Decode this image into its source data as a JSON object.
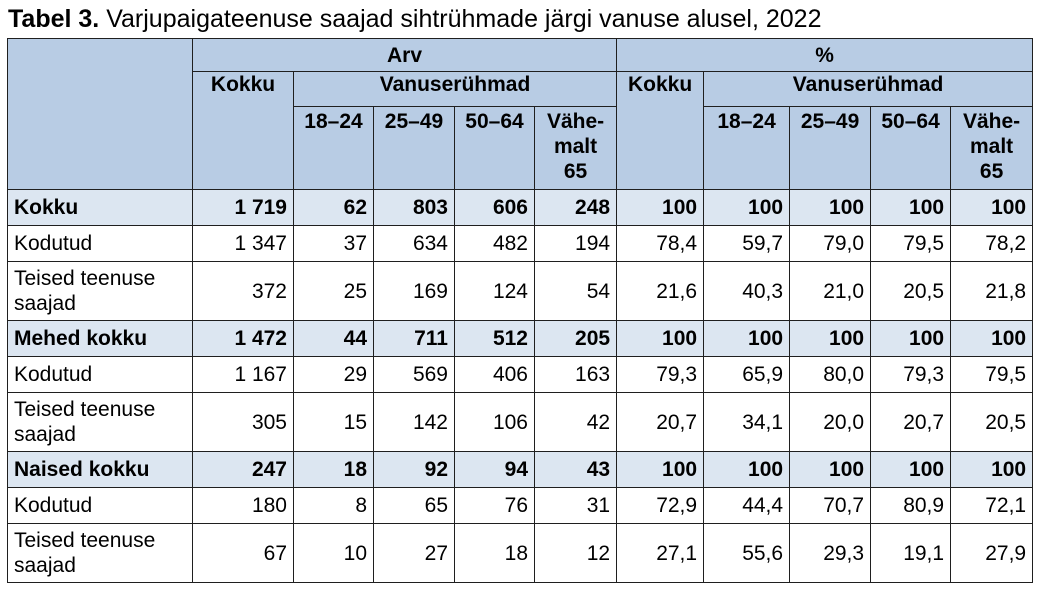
{
  "title": {
    "bold": "Tabel 3.",
    "text": " Varjupaigateenuse saajad sihtrühmade järgi vanuse alusel, 2022"
  },
  "header": {
    "group_count": "Arv",
    "group_pct": "%",
    "total": "Kokku",
    "age_groups": "Vanuserühmad",
    "ages": [
      "18–24",
      "25–49",
      "50–64",
      "Vähe-malt 65"
    ],
    "ages_display": [
      "18–24",
      "25–49",
      "50–64",
      "Vähe-\nmalt\n65"
    ]
  },
  "rows": [
    {
      "label": "Kokku",
      "total": true,
      "cells": [
        "1 719",
        "62",
        "803",
        "606",
        "248",
        "100",
        "100",
        "100",
        "100",
        "100"
      ]
    },
    {
      "label": "Kodutud",
      "total": false,
      "cells": [
        "1 347",
        "37",
        "634",
        "482",
        "194",
        "78,4",
        "59,7",
        "79,0",
        "79,5",
        "78,2"
      ]
    },
    {
      "label": "Teised teenuse saajad",
      "total": false,
      "tall": true,
      "cells": [
        "372",
        "25",
        "169",
        "124",
        "54",
        "21,6",
        "40,3",
        "21,0",
        "20,5",
        "21,8"
      ]
    },
    {
      "label": "Mehed kokku",
      "total": true,
      "cells": [
        "1 472",
        "44",
        "711",
        "512",
        "205",
        "100",
        "100",
        "100",
        "100",
        "100"
      ]
    },
    {
      "label": "Kodutud",
      "total": false,
      "cells": [
        "1 167",
        "29",
        "569",
        "406",
        "163",
        "79,3",
        "65,9",
        "80,0",
        "79,3",
        "79,5"
      ]
    },
    {
      "label": "Teised teenuse saajad",
      "total": false,
      "tall": true,
      "cells": [
        "305",
        "15",
        "142",
        "106",
        "42",
        "20,7",
        "34,1",
        "20,0",
        "20,7",
        "20,5"
      ]
    },
    {
      "label": "Naised kokku",
      "total": true,
      "cells": [
        "247",
        "18",
        "92",
        "94",
        "43",
        "100",
        "100",
        "100",
        "100",
        "100"
      ]
    },
    {
      "label": "Kodutud",
      "total": false,
      "cells": [
        "180",
        "8",
        "65",
        "76",
        "31",
        "72,9",
        "44,4",
        "70,7",
        "80,9",
        "72,1"
      ]
    },
    {
      "label": "Teised teenuse saajad",
      "total": false,
      "tall": true,
      "cells": [
        "67",
        "10",
        "27",
        "18",
        "12",
        "27,1",
        "55,6",
        "29,3",
        "19,1",
        "27,9"
      ]
    }
  ],
  "colors": {
    "header_bg": "#b8cce4",
    "total_row_bg": "#dce6f1",
    "border": "#1f1f1f"
  }
}
